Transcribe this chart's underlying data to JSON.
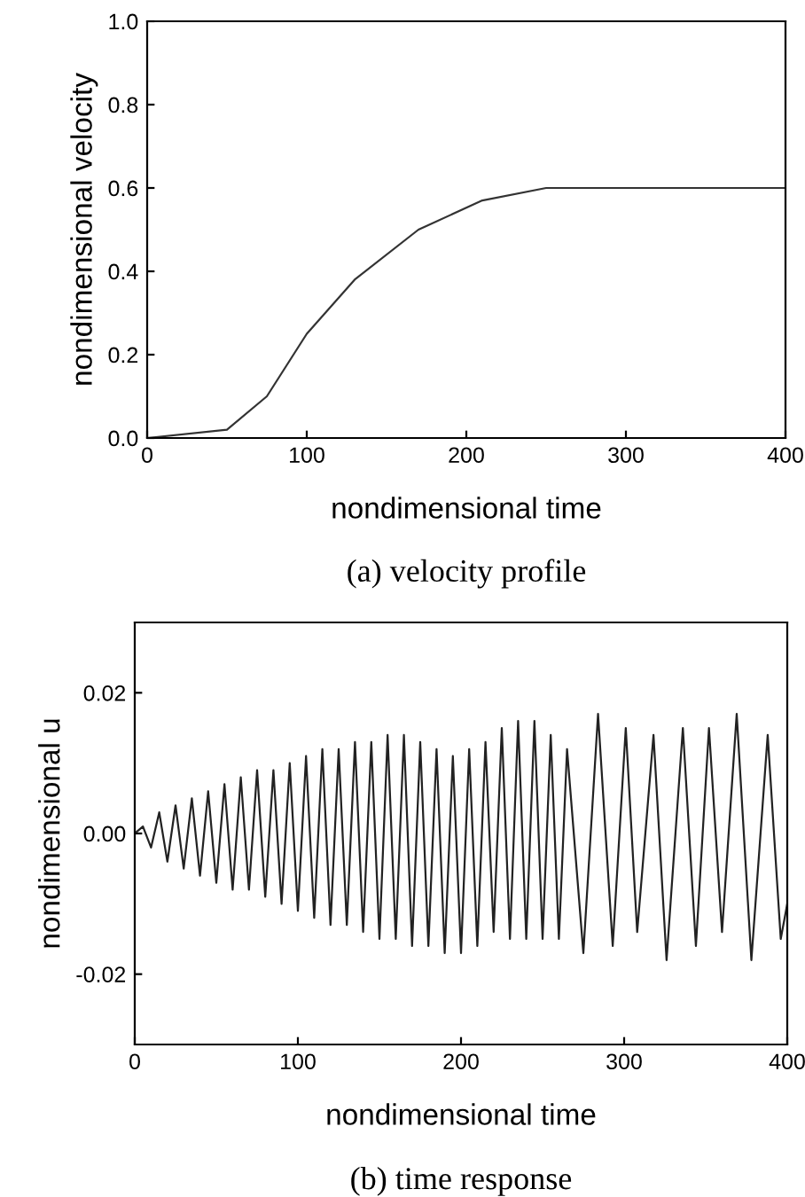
{
  "chart_data": [
    {
      "type": "line",
      "xlabel": "nondimensional time",
      "ylabel": "nondimensional velocity",
      "annotations": [
        "(a) velocity profile"
      ],
      "xlim": [
        0,
        400
      ],
      "xticks": [
        0,
        100,
        200,
        300,
        400
      ],
      "ylim": [
        0,
        1.0
      ],
      "yticks": [
        {
          "value": 0,
          "label": "0.0"
        },
        0.2,
        0.4,
        0.6,
        0.8,
        {
          "value": 1.0,
          "label": "1.0"
        }
      ],
      "grid": false,
      "legend": false,
      "series": [
        {
          "color": "#333333",
          "x": [
            0,
            50,
            75,
            100,
            130,
            170,
            210,
            250,
            400
          ],
          "values": [
            0,
            0.02,
            0.1,
            0.25,
            0.38,
            0.5,
            0.57,
            0.6,
            0.6
          ]
        }
      ]
    },
    {
      "type": "line",
      "xlabel": "nondimensional time",
      "ylabel": "nondimensional u",
      "annotations": [
        "(b) time response"
      ],
      "xlim": [
        0,
        400
      ],
      "xticks": [
        0,
        100,
        200,
        300,
        400
      ],
      "ylim": [
        -0.03,
        0.03
      ],
      "yticks": [
        {
          "value": -0.02,
          "label": "-0.02"
        },
        {
          "value": 0,
          "label": "0.00"
        },
        0.02
      ],
      "grid": false,
      "legend": false,
      "series": [
        {
          "color": "#222222",
          "x": [
            0,
            5,
            10,
            15,
            20,
            25,
            30,
            35,
            40,
            45,
            50,
            55,
            60,
            65,
            70,
            75,
            80,
            85,
            90,
            95,
            100,
            105,
            110,
            115,
            120,
            125,
            130,
            135,
            140,
            145,
            150,
            155,
            160,
            165,
            170,
            175,
            180,
            185,
            190,
            195,
            200,
            205,
            210,
            215,
            220,
            225,
            230,
            235,
            240,
            245,
            250,
            255,
            260,
            265,
            275,
            284,
            293,
            301,
            308,
            318,
            326,
            336,
            344,
            352,
            360,
            369,
            378,
            388,
            396,
            400
          ],
          "values": [
            0,
            0.001,
            -0.002,
            0.003,
            -0.004,
            0.004,
            -0.005,
            0.005,
            -0.006,
            0.006,
            -0.007,
            0.007,
            -0.008,
            0.008,
            -0.008,
            0.009,
            -0.009,
            0.009,
            -0.01,
            0.01,
            -0.011,
            0.011,
            -0.012,
            0.012,
            -0.013,
            0.012,
            -0.013,
            0.013,
            -0.014,
            0.013,
            -0.015,
            0.014,
            -0.015,
            0.014,
            -0.016,
            0.013,
            -0.016,
            0.012,
            -0.017,
            0.011,
            -0.017,
            0.012,
            -0.016,
            0.013,
            -0.014,
            0.015,
            -0.015,
            0.016,
            -0.015,
            0.016,
            -0.015,
            0.014,
            -0.015,
            0.012,
            -0.017,
            0.017,
            -0.016,
            0.015,
            -0.014,
            0.014,
            -0.018,
            0.015,
            -0.016,
            0.015,
            -0.014,
            0.017,
            -0.018,
            0.014,
            -0.015,
            -0.01
          ]
        }
      ]
    }
  ]
}
